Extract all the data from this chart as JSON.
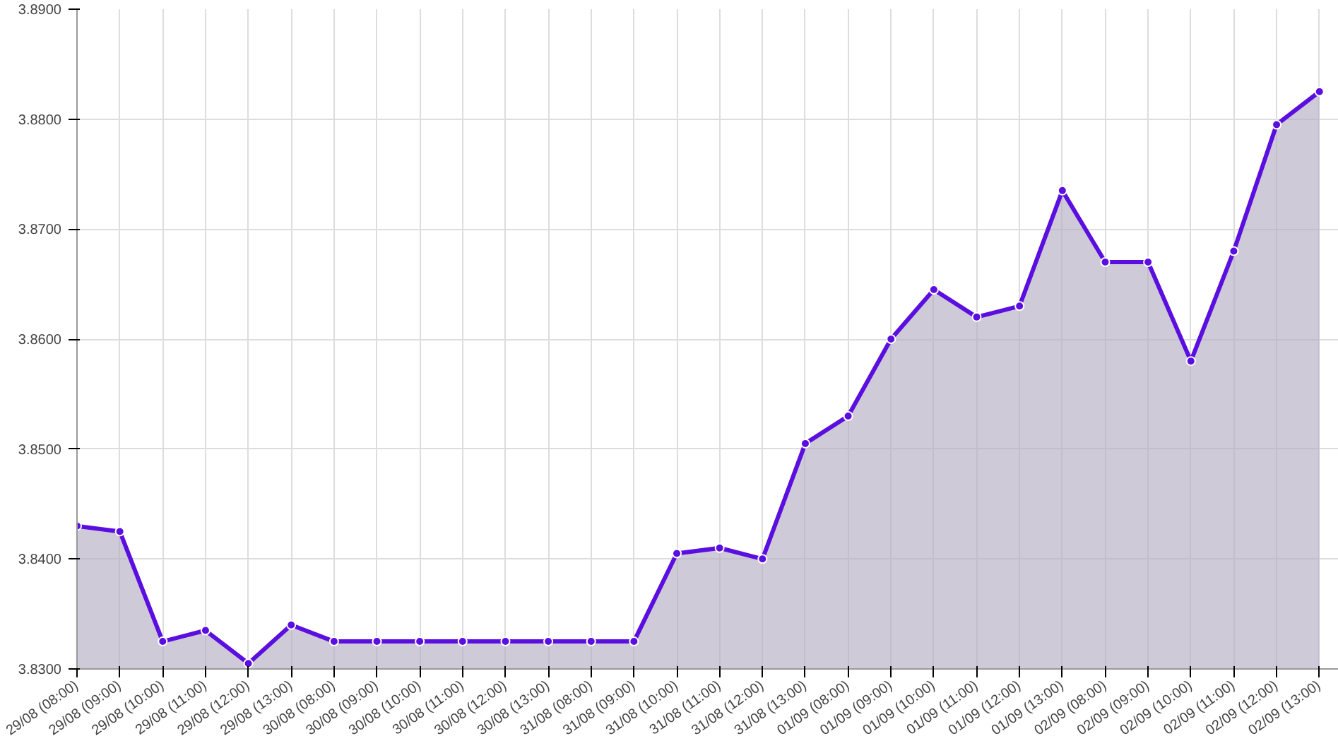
{
  "chart_data": {
    "type": "area",
    "categories": [
      "29/08 (08:00)",
      "29/08 (09:00)",
      "29/08 (10:00)",
      "29/08 (11:00)",
      "29/08 (12:00)",
      "29/08 (13:00)",
      "30/08 (08:00)",
      "30/08 (09:00)",
      "30/08 (10:00)",
      "30/08 (11:00)",
      "30/08 (12:00)",
      "30/08 (13:00)",
      "31/08 (08:00)",
      "31/08 (09:00)",
      "31/08 (10:00)",
      "31/08 (11:00)",
      "31/08 (12:00)",
      "31/08 (13:00)",
      "01/09 (08:00)",
      "01/09 (09:00)",
      "01/09 (10:00)",
      "01/09 (11:00)",
      "01/09 (12:00)",
      "01/09 (13:00)",
      "02/09 (08:00)",
      "02/09 (09:00)",
      "02/09 (10:00)",
      "02/09 (11:00)",
      "02/09 (12:00)",
      "02/09 (13:00)"
    ],
    "series": [
      {
        "color": "#5b0ee0",
        "values": [
          3.843,
          3.8425,
          3.8325,
          3.8335,
          3.8305,
          3.834,
          3.8325,
          3.8325,
          3.8325,
          3.8325,
          3.8325,
          3.8325,
          3.8325,
          3.8325,
          3.8405,
          3.841,
          3.84,
          3.8505,
          3.853,
          3.86,
          3.8645,
          3.862,
          3.863,
          3.8735,
          3.867,
          3.867,
          3.858,
          3.868,
          3.8795,
          3.8825
        ]
      }
    ],
    "ylim": [
      3.83,
      3.89
    ],
    "yticks": [
      {
        "value": 3.83,
        "label": "3.8300"
      },
      {
        "value": 3.84,
        "label": "3.8400"
      },
      {
        "value": 3.85,
        "label": "3.8500"
      },
      {
        "value": 3.86,
        "label": "3.8600"
      },
      {
        "value": 3.87,
        "label": "3.8700"
      },
      {
        "value": 3.88,
        "label": "3.8800"
      },
      {
        "value": 3.89,
        "label": "3.8900"
      }
    ],
    "grid": true,
    "marker": "circle",
    "line_style": "solid"
  }
}
